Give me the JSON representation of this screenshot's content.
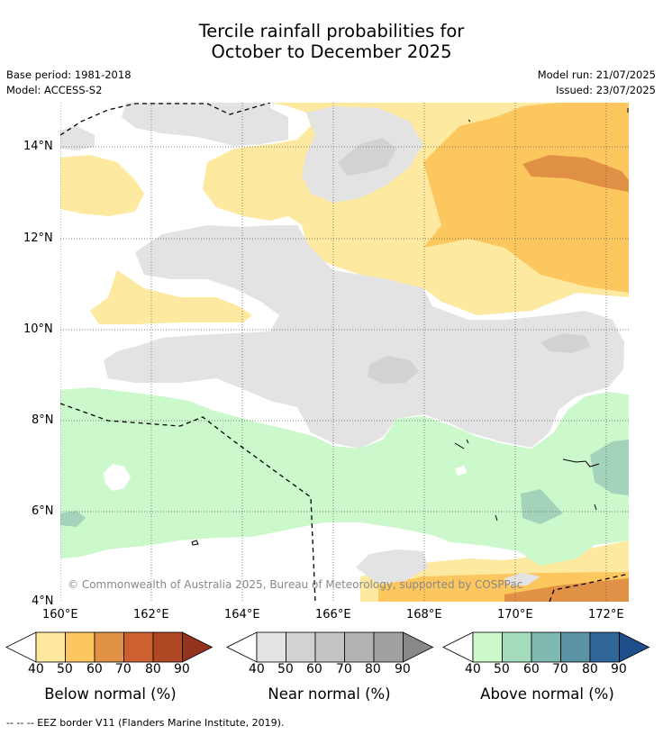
{
  "title": {
    "line1": "Tercile rainfall probabilities for",
    "line2": "October to December 2025"
  },
  "meta": {
    "base_period": "Base period: 1981-2018",
    "model": "Model: ACCESS-S2",
    "model_run": "Model run: 21/07/2025",
    "issued": "Issued: 23/07/2025"
  },
  "map": {
    "copyright": "© Commonwealth of Australia 2025, Bureau of Meteorology, supported by COSPPac",
    "lat_labels": [
      "14°N",
      "12°N",
      "10°N",
      "8°N",
      "6°N",
      "4°N"
    ],
    "lon_labels": [
      "160°E",
      "162°E",
      "164°E",
      "166°E",
      "168°E",
      "170°E",
      "172°E"
    ],
    "colors": {
      "below_50": "#fde9a0",
      "below_60": "#fdc75f",
      "below_70": "#e09145",
      "near_50": "#e3e3e3",
      "near_60": "#d2d2d2",
      "above_50": "#ccf9cc",
      "above_60": "#a3d3bb"
    }
  },
  "legends": [
    {
      "id": "below",
      "label": "Below normal (%)",
      "ticks": [
        "40",
        "50",
        "60",
        "70",
        "80",
        "90"
      ],
      "colors": [
        "#fee99f",
        "#fdc75f",
        "#e09145",
        "#cd6031",
        "#b04825",
        "#92341d"
      ]
    },
    {
      "id": "near",
      "label": "Near normal (%)",
      "ticks": [
        "40",
        "50",
        "60",
        "70",
        "80",
        "90"
      ],
      "colors": [
        "#e3e3e3",
        "#d2d2d2",
        "#c4c4c4",
        "#b2b2b2",
        "#a0a0a0",
        "#888888"
      ]
    },
    {
      "id": "above",
      "label": "Above normal (%)",
      "ticks": [
        "40",
        "50",
        "60",
        "70",
        "80",
        "90"
      ],
      "colors": [
        "#ccf9cc",
        "#a6dcbe",
        "#80b9b0",
        "#5c93a4",
        "#316699",
        "#1e4e8c"
      ]
    }
  ],
  "footnote": "--  --  -- EEZ border V11 (Flanders Marine Institute, 2019)."
}
